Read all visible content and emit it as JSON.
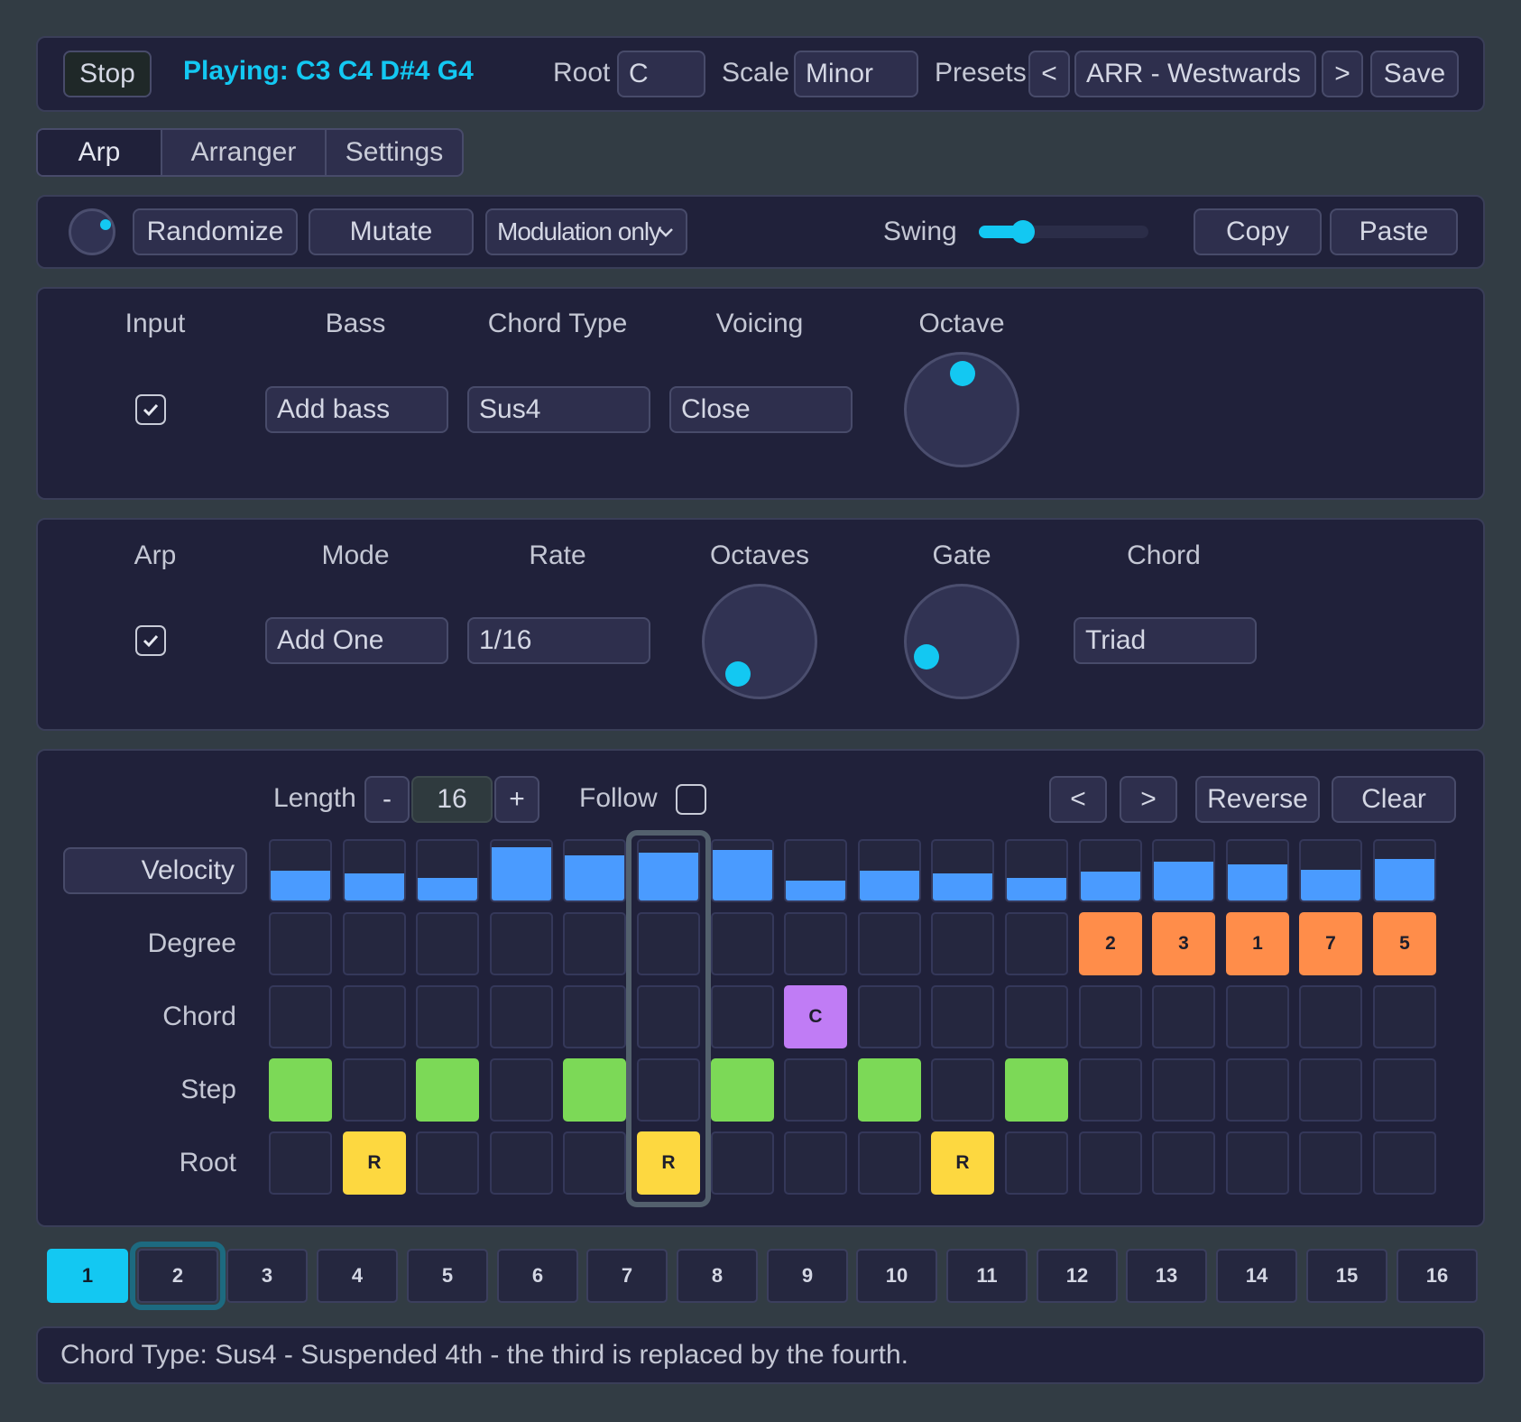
{
  "header": {
    "stop_label": "Stop",
    "playing_text": "Playing: C3 C4 D#4 G4",
    "root_label": "Root",
    "root_value": "C",
    "scale_label": "Scale",
    "scale_value": "Minor",
    "presets_label": "Presets",
    "prev_label": "<",
    "preset_value": "ARR - Westwards",
    "next_label": ">",
    "save_label": "Save"
  },
  "tabs": [
    {
      "label": "Arp",
      "active": true
    },
    {
      "label": "Arranger",
      "active": false
    },
    {
      "label": "Settings",
      "active": false
    }
  ],
  "toolbar": {
    "randomize_label": "Randomize",
    "mutate_label": "Mutate",
    "mod_select_value": "Modulation only",
    "swing_label": "Swing",
    "swing_value": 0.26,
    "copy_label": "Copy",
    "paste_label": "Paste"
  },
  "chord_section": {
    "input_label": "Input",
    "input_checked": true,
    "bass_label": "Bass",
    "bass_value": "Add bass",
    "chord_type_label": "Chord Type",
    "chord_type_value": "Sus4",
    "voicing_label": "Voicing",
    "voicing_value": "Close",
    "octave_label": "Octave",
    "octave_knob_value": 0.5
  },
  "arp_section": {
    "arp_label": "Arp",
    "arp_checked": true,
    "mode_label": "Mode",
    "mode_value": "Add One",
    "rate_label": "Rate",
    "rate_value": "1/16",
    "octaves_label": "Octaves",
    "octaves_knob_value": 0.12,
    "gate_label": "Gate",
    "gate_knob_value": 0.2,
    "chord_label": "Chord",
    "chord_value": "Triad"
  },
  "sequencer": {
    "length_label": "Length",
    "minus_label": "-",
    "length_value": "16",
    "plus_label": "+",
    "follow_label": "Follow",
    "follow_checked": false,
    "shift_left_label": "<",
    "shift_right_label": ">",
    "reverse_label": "Reverse",
    "clear_label": "Clear",
    "current_step": 6,
    "rows": {
      "velocity_label": "Velocity",
      "degree_label": "Degree",
      "chord_label": "Chord",
      "step_label": "Step",
      "root_label": "Root"
    },
    "velocity": [
      0.5,
      0.45,
      0.38,
      0.9,
      0.75,
      0.8,
      0.85,
      0.33,
      0.5,
      0.45,
      0.38,
      0.48,
      0.65,
      0.6,
      0.52,
      0.7
    ],
    "degree": [
      "",
      "",
      "",
      "",
      "",
      "",
      "",
      "",
      "",
      "",
      "",
      "2",
      "3",
      "1",
      "7",
      "5"
    ],
    "chord": [
      "",
      "",
      "",
      "",
      "",
      "",
      "",
      "C",
      "",
      "",
      "",
      "",
      "",
      "",
      "",
      ""
    ],
    "step": [
      true,
      false,
      true,
      false,
      true,
      false,
      true,
      false,
      true,
      false,
      true,
      false,
      false,
      false,
      false,
      false
    ],
    "root": [
      "",
      "R",
      "",
      "",
      "",
      "R",
      "",
      "",
      "",
      "R",
      "",
      "",
      "",
      "",
      "",
      ""
    ],
    "colors": {
      "velocity": "#4a9bff",
      "degree": "#ff8d4a",
      "chord": "#c07cf5",
      "step": "#7cd957",
      "root": "#fdd840"
    }
  },
  "patterns": {
    "labels": [
      "1",
      "2",
      "3",
      "4",
      "5",
      "6",
      "7",
      "8",
      "9",
      "10",
      "11",
      "12",
      "13",
      "14",
      "15",
      "16"
    ],
    "active": 1,
    "selected": 2
  },
  "status": {
    "text": "Chord Type: Sus4 - Suspended 4th - the third is replaced by the fourth."
  },
  "colors": {
    "accent": "#13c8f2",
    "background": "#323c44",
    "panel": "#20213a"
  }
}
